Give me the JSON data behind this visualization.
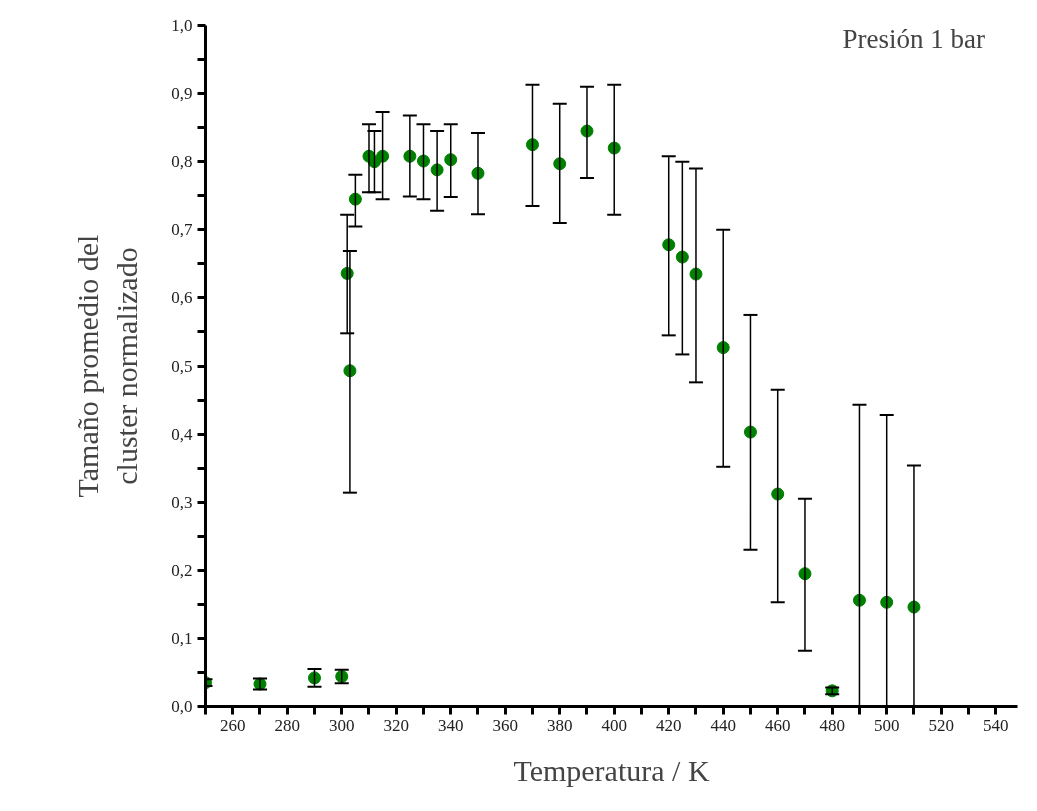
{
  "chart_data": {
    "type": "scatter",
    "xlabel": "Temperatura / K",
    "ylabel": "Tamaño promedio del\ncluster normalizado",
    "annotations": [
      "Presión 1 bar"
    ],
    "x": [
      250,
      270,
      290,
      300,
      302,
      303,
      305,
      310,
      312,
      315,
      325,
      330,
      335,
      340,
      350,
      370,
      380,
      390,
      400,
      420,
      425,
      430,
      440,
      450,
      460,
      470,
      480,
      490,
      500,
      510
    ],
    "series": [
      {
        "color": "#008000",
        "values": [
          0.035,
          0.033,
          0.042,
          0.044,
          0.636,
          0.493,
          0.745,
          0.808,
          0.8,
          0.808,
          0.808,
          0.801,
          0.788,
          0.803,
          0.783,
          0.825,
          0.797,
          0.845,
          0.82,
          0.678,
          0.66,
          0.635,
          0.527,
          0.403,
          0.312,
          0.195,
          0.023,
          0.156,
          0.153,
          0.146
        ],
        "errors": [
          [
            0.03,
            0.04
          ],
          [
            0.025,
            0.041
          ],
          [
            0.029,
            0.055
          ],
          [
            0.034,
            0.054
          ],
          [
            0.548,
            0.722
          ],
          [
            0.314,
            0.669
          ],
          [
            0.705,
            0.781
          ],
          [
            0.755,
            0.855
          ],
          [
            0.755,
            0.845
          ],
          [
            0.745,
            0.873
          ],
          [
            0.749,
            0.868
          ],
          [
            0.745,
            0.855
          ],
          [
            0.728,
            0.845
          ],
          [
            0.748,
            0.855
          ],
          [
            0.723,
            0.842
          ],
          [
            0.735,
            0.913
          ],
          [
            0.71,
            0.885
          ],
          [
            0.776,
            0.91
          ],
          [
            0.722,
            0.913
          ],
          [
            0.545,
            0.808
          ],
          [
            0.517,
            0.8
          ],
          [
            0.476,
            0.79
          ],
          [
            0.352,
            0.7
          ],
          [
            0.23,
            0.575
          ],
          [
            0.153,
            0.465
          ],
          [
            0.082,
            0.305
          ],
          [
            0.018,
            0.028
          ],
          [
            0,
            0.443
          ],
          [
            0,
            0.428
          ],
          [
            0,
            0.354
          ]
        ]
      }
    ],
    "marker": "circle",
    "grid": false,
    "xlim": [
      250,
      548
    ],
    "ylim": [
      0,
      1.0
    ],
    "xticks": [
      {
        "value": 250,
        "label": null
      },
      260,
      {
        "value": 270,
        "label": null
      },
      280,
      {
        "value": 290,
        "label": null
      },
      300,
      {
        "value": 310,
        "label": null
      },
      320,
      {
        "value": 330,
        "label": null
      },
      340,
      {
        "value": 350,
        "label": null
      },
      360,
      {
        "value": 370,
        "label": null
      },
      380,
      {
        "value": 390,
        "label": null
      },
      400,
      {
        "value": 410,
        "label": null
      },
      420,
      {
        "value": 430,
        "label": null
      },
      440,
      {
        "value": 450,
        "label": null
      },
      460,
      {
        "value": 470,
        "label": null
      },
      480,
      {
        "value": 490,
        "label": null
      },
      500,
      {
        "value": 510,
        "label": null
      },
      520,
      {
        "value": 530,
        "label": null
      },
      540
    ],
    "yticks": [
      {
        "value": 0,
        "label": "0,0"
      },
      {
        "value": 0.05,
        "label": null
      },
      {
        "value": 0.1,
        "label": "0,1"
      },
      {
        "value": 0.15,
        "label": null
      },
      {
        "value": 0.2,
        "label": "0,2"
      },
      {
        "value": 0.25,
        "label": null
      },
      {
        "value": 0.3,
        "label": "0,3"
      },
      {
        "value": 0.35,
        "label": null
      },
      {
        "value": 0.4,
        "label": "0,4"
      },
      {
        "value": 0.45,
        "label": null
      },
      {
        "value": 0.5,
        "label": "0,5"
      },
      {
        "value": 0.55,
        "label": null
      },
      {
        "value": 0.6,
        "label": "0,6"
      },
      {
        "value": 0.65,
        "label": null
      },
      {
        "value": 0.7,
        "label": "0,7"
      },
      {
        "value": 0.75,
        "label": null
      },
      {
        "value": 0.8,
        "label": "0,8"
      },
      {
        "value": 0.85,
        "label": null
      },
      {
        "value": 0.9,
        "label": "0,9"
      },
      {
        "value": 0.95,
        "label": null
      },
      {
        "value": 1.0,
        "label": "1,0"
      }
    ]
  }
}
